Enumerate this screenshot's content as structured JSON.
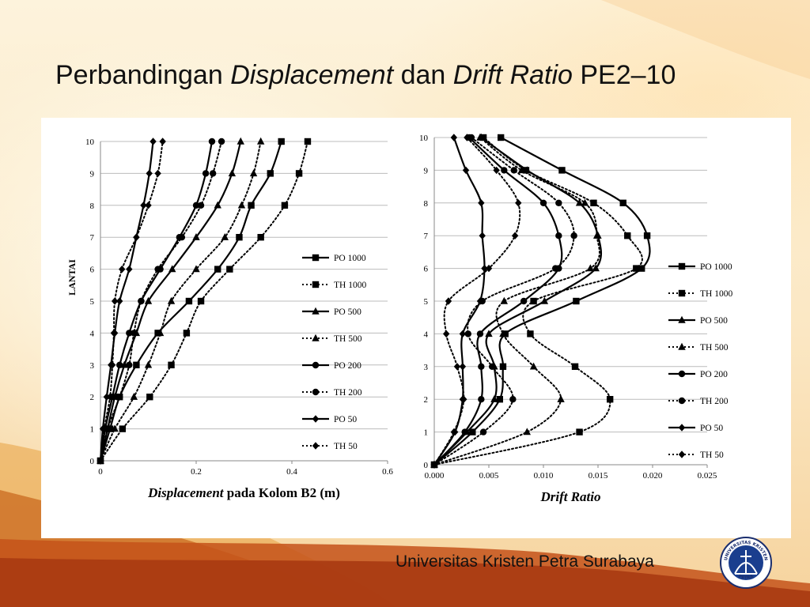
{
  "slide": {
    "title_plain_1": "Perbandingan ",
    "title_italic_1": "Displacement",
    "title_plain_2": " dan ",
    "title_italic_2": "Drift Ratio",
    "title_plain_3": " PE2–10",
    "footer": "Universitas Kristen Petra Surabaya",
    "logo_text_top": "UNIVERSITAS KRISTEN",
    "logo_text_bottom": "PETRA"
  },
  "chart_data": [
    {
      "type": "line",
      "ylabel": "LANTAI",
      "xlabel_italic": "Displacement",
      "xlabel_rest": " pada Kolom B2 (m)",
      "xlim": [
        0,
        0.6
      ],
      "ylim": [
        0,
        10
      ],
      "xticks": [
        "0",
        "0.2",
        "0.4",
        "0.6"
      ],
      "yticks": [
        "0",
        "1",
        "2",
        "3",
        "4",
        "5",
        "6",
        "7",
        "8",
        "9",
        "10"
      ],
      "legend_position": "right",
      "y": [
        0,
        1,
        2,
        3,
        4,
        5,
        6,
        7,
        8,
        9,
        10
      ],
      "series": [
        {
          "name": "PO 1000",
          "marker": "square",
          "dashed": false,
          "x": [
            0,
            0.02,
            0.04,
            0.075,
            0.12,
            0.185,
            0.245,
            0.29,
            0.315,
            0.355,
            0.378
          ]
        },
        {
          "name": "TH 1000",
          "marker": "square",
          "dashed": true,
          "x": [
            0,
            0.046,
            0.103,
            0.148,
            0.18,
            0.21,
            0.27,
            0.335,
            0.385,
            0.415,
            0.433
          ]
        },
        {
          "name": "PO 500",
          "marker": "triangle",
          "dashed": false,
          "x": [
            0,
            0.015,
            0.03,
            0.05,
            0.075,
            0.1,
            0.15,
            0.2,
            0.245,
            0.275,
            0.293
          ]
        },
        {
          "name": "TH 500",
          "marker": "triangle",
          "dashed": true,
          "x": [
            0,
            0.03,
            0.07,
            0.1,
            0.125,
            0.148,
            0.2,
            0.26,
            0.295,
            0.32,
            0.335
          ]
        },
        {
          "name": "PO 200",
          "marker": "circle",
          "dashed": false,
          "x": [
            0,
            0.01,
            0.025,
            0.04,
            0.06,
            0.085,
            0.125,
            0.165,
            0.2,
            0.22,
            0.233
          ]
        },
        {
          "name": "TH 200",
          "marker": "circle",
          "dashed": true,
          "x": [
            0,
            0.015,
            0.04,
            0.06,
            0.07,
            0.085,
            0.12,
            0.17,
            0.21,
            0.235,
            0.253
          ]
        },
        {
          "name": "PO 50",
          "marker": "diamond",
          "dashed": false,
          "x": [
            0,
            0.005,
            0.013,
            0.022,
            0.03,
            0.04,
            0.06,
            0.075,
            0.09,
            0.102,
            0.11
          ]
        },
        {
          "name": "TH 50",
          "marker": "diamond",
          "dashed": true,
          "x": [
            0,
            0.008,
            0.02,
            0.025,
            0.028,
            0.03,
            0.045,
            0.075,
            0.1,
            0.12,
            0.13
          ]
        }
      ]
    },
    {
      "type": "line",
      "xlabel_italic": "Drift Ratio",
      "xlim": [
        0,
        0.025
      ],
      "ylim": [
        0,
        10
      ],
      "xticks": [
        "0.000",
        "0.005",
        "0.010",
        "0.015",
        "0.020",
        "0.025"
      ],
      "yticks": [
        "0",
        "1",
        "2",
        "3",
        "4",
        "5",
        "6",
        "7",
        "8",
        "9",
        "10"
      ],
      "legend_position": "right",
      "y": [
        0,
        1,
        2,
        3,
        4,
        5,
        6,
        7,
        8,
        9,
        10
      ],
      "series": [
        {
          "name": "PO 1000",
          "marker": "square",
          "dashed": false,
          "x": [
            0,
            0.0035,
            0.006,
            0.0063,
            0.0065,
            0.013,
            0.019,
            0.0195,
            0.0173,
            0.0117,
            0.0061
          ]
        },
        {
          "name": "TH 1000",
          "marker": "square",
          "dashed": true,
          "x": [
            0,
            0.0133,
            0.0161,
            0.0129,
            0.0088,
            0.0091,
            0.0185,
            0.0177,
            0.0146,
            0.0084,
            0.0045
          ]
        },
        {
          "name": "PO 500",
          "marker": "triangle",
          "dashed": false,
          "x": [
            0,
            0.003,
            0.0055,
            0.0055,
            0.005,
            0.0101,
            0.0148,
            0.015,
            0.0133,
            0.0085,
            0.0043
          ]
        },
        {
          "name": "TH 500",
          "marker": "triangle",
          "dashed": true,
          "x": [
            0,
            0.0085,
            0.0116,
            0.0091,
            0.0063,
            0.0064,
            0.0143,
            0.0149,
            0.0138,
            0.008,
            0.0042
          ]
        },
        {
          "name": "PO 200",
          "marker": "circle",
          "dashed": false,
          "x": [
            0,
            0.0028,
            0.0043,
            0.0043,
            0.0042,
            0.0082,
            0.0114,
            0.0114,
            0.01,
            0.0064,
            0.0032
          ]
        },
        {
          "name": "TH 200",
          "marker": "circle",
          "dashed": true,
          "x": [
            0,
            0.0045,
            0.0072,
            0.0053,
            0.0031,
            0.0044,
            0.0111,
            0.0128,
            0.0114,
            0.0073,
            0.0034
          ]
        },
        {
          "name": "PO 50",
          "marker": "diamond",
          "dashed": false,
          "x": [
            0,
            0.0019,
            0.0026,
            0.0026,
            0.0026,
            0.0042,
            0.0046,
            0.0044,
            0.0043,
            0.0029,
            0.0018
          ]
        },
        {
          "name": "TH 50",
          "marker": "diamond",
          "dashed": true,
          "x": [
            0,
            0.0018,
            0.0027,
            0.0021,
            0.0011,
            0.0013,
            0.005,
            0.0074,
            0.0077,
            0.0057,
            0.003
          ]
        }
      ]
    }
  ]
}
